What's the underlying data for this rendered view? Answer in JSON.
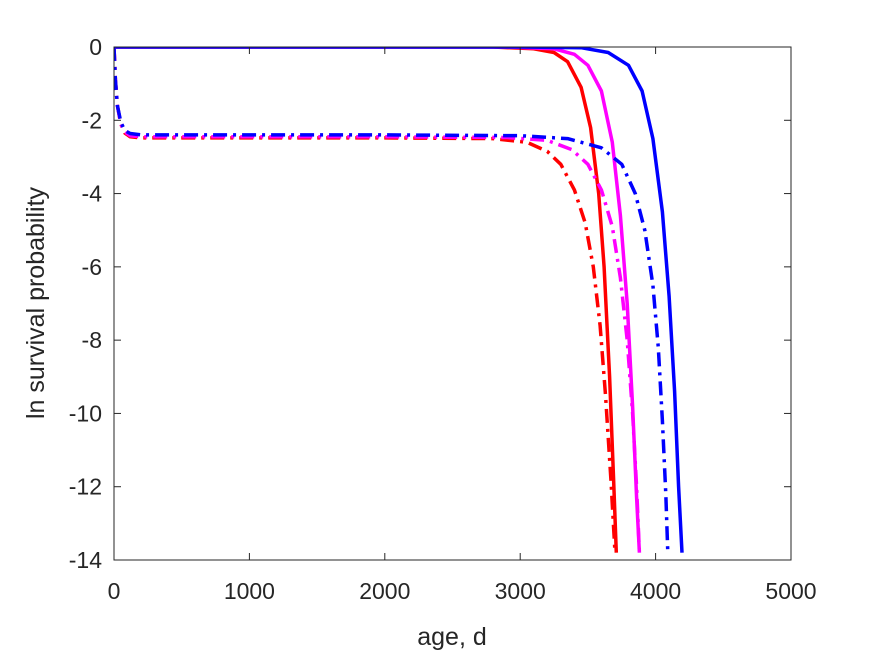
{
  "chart_data": {
    "type": "line",
    "title": "",
    "xlabel": "age, d",
    "ylabel": "ln survival probability",
    "xlim": [
      0,
      5000
    ],
    "ylim": [
      -14,
      0
    ],
    "xticks": [
      0,
      1000,
      2000,
      3000,
      4000,
      5000
    ],
    "yticks": [
      0,
      -2,
      -4,
      -6,
      -8,
      -10,
      -12,
      -14
    ],
    "x_tick_labels": [
      "0",
      "1000",
      "2000",
      "3000",
      "4000",
      "5000"
    ],
    "y_tick_labels": [
      "0",
      "-2",
      "-4",
      "-6",
      "-8",
      "-10",
      "-12",
      "-14"
    ],
    "grid": false,
    "legend": "none",
    "series": [
      {
        "color": "#ff0000",
        "style": "solid",
        "x": [
          0,
          1000,
          2000,
          2800,
          3100,
          3250,
          3350,
          3450,
          3520,
          3580,
          3620,
          3660,
          3690,
          3710
        ],
        "y": [
          0,
          0,
          0,
          0,
          -0.05,
          -0.15,
          -0.4,
          -1.1,
          -2.2,
          -4.0,
          -6.0,
          -9.0,
          -11.8,
          -13.8
        ]
      },
      {
        "color": "#ff00ff",
        "style": "solid",
        "x": [
          0,
          1000,
          2000,
          2900,
          3250,
          3400,
          3500,
          3600,
          3680,
          3740,
          3790,
          3830,
          3860,
          3880
        ],
        "y": [
          0,
          0,
          0,
          0,
          -0.05,
          -0.2,
          -0.5,
          -1.2,
          -2.6,
          -4.6,
          -7.0,
          -9.8,
          -12.3,
          -13.8
        ]
      },
      {
        "color": "#0000ff",
        "style": "solid",
        "x": [
          0,
          1000,
          2000,
          3000,
          3450,
          3650,
          3800,
          3900,
          3980,
          4050,
          4100,
          4140,
          4170,
          4195
        ],
        "y": [
          0,
          0,
          0,
          0,
          -0.02,
          -0.15,
          -0.5,
          -1.2,
          -2.5,
          -4.5,
          -6.8,
          -9.4,
          -12.0,
          -13.8
        ]
      },
      {
        "color": "#ff0000",
        "style": "dashdot",
        "x": [
          0,
          10,
          25,
          50,
          80,
          120,
          200,
          1000,
          2000,
          2800,
          3050,
          3200,
          3300,
          3400,
          3480,
          3540,
          3590,
          3630,
          3670,
          3700
        ],
        "y": [
          0,
          -0.9,
          -1.6,
          -2.1,
          -2.35,
          -2.45,
          -2.48,
          -2.48,
          -2.48,
          -2.5,
          -2.6,
          -2.85,
          -3.2,
          -3.9,
          -4.8,
          -6.0,
          -7.6,
          -9.5,
          -11.8,
          -13.8
        ]
      },
      {
        "color": "#ff00ff",
        "style": "dashdot",
        "x": [
          0,
          10,
          25,
          50,
          80,
          120,
          200,
          1000,
          2000,
          2900,
          3200,
          3380,
          3500,
          3600,
          3680,
          3740,
          3790,
          3830,
          3860,
          3880
        ],
        "y": [
          0,
          -0.9,
          -1.6,
          -2.1,
          -2.32,
          -2.42,
          -2.45,
          -2.45,
          -2.45,
          -2.47,
          -2.55,
          -2.8,
          -3.2,
          -3.9,
          -4.9,
          -6.3,
          -8.0,
          -10.0,
          -12.0,
          -13.8
        ]
      },
      {
        "color": "#0000ff",
        "style": "dashdot",
        "x": [
          0,
          10,
          25,
          50,
          80,
          120,
          200,
          1000,
          2000,
          3000,
          3350,
          3600,
          3750,
          3850,
          3920,
          3980,
          4020,
          4050,
          4075,
          4090
        ],
        "y": [
          0,
          -0.9,
          -1.6,
          -2.05,
          -2.28,
          -2.36,
          -2.4,
          -2.4,
          -2.4,
          -2.42,
          -2.5,
          -2.75,
          -3.2,
          -4.0,
          -5.0,
          -6.5,
          -8.2,
          -10.2,
          -12.2,
          -13.8
        ]
      }
    ]
  }
}
